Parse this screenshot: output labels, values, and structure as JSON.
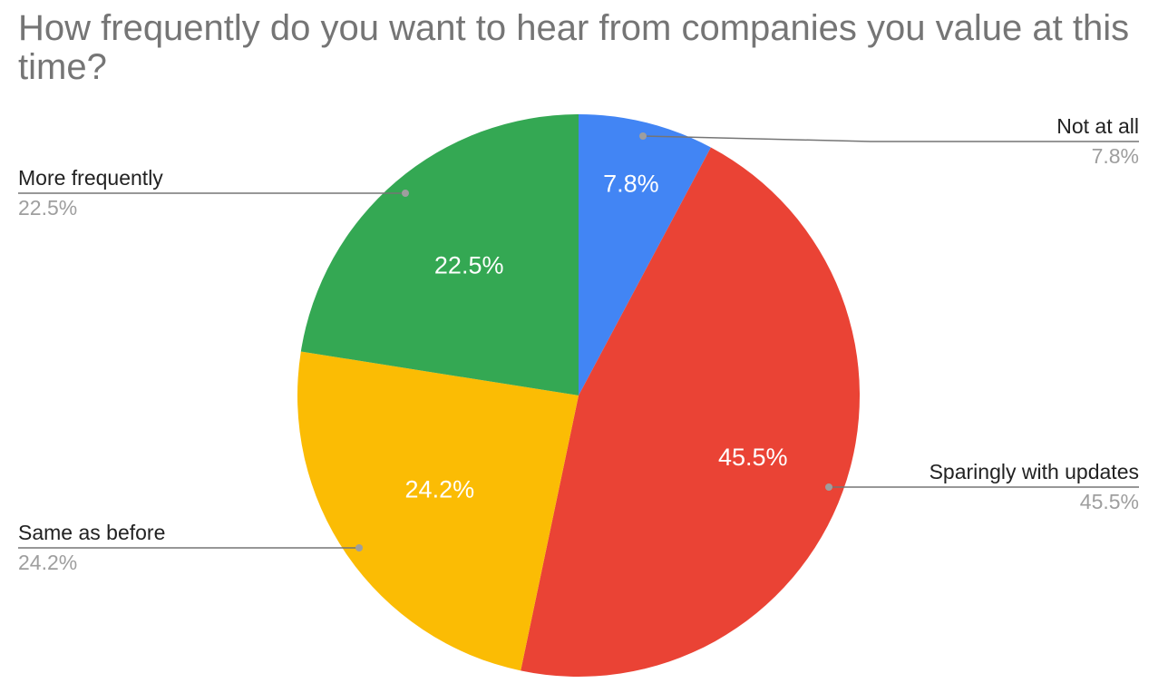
{
  "chart_data": {
    "type": "pie",
    "title": "How frequently do you want to hear from companies you value at this time?",
    "slices": [
      {
        "name": "Not at all",
        "value": 7.8,
        "label": "7.8%",
        "color": "#4285F4"
      },
      {
        "name": "Sparingly with updates",
        "value": 45.5,
        "label": "45.5%",
        "color": "#EA4335"
      },
      {
        "name": "Same as before",
        "value": 24.2,
        "label": "24.2%",
        "color": "#FBBC04"
      },
      {
        "name": "More frequently",
        "value": 22.5,
        "label": "22.5%",
        "color": "#34A853"
      }
    ],
    "legend": "leader-labels"
  }
}
